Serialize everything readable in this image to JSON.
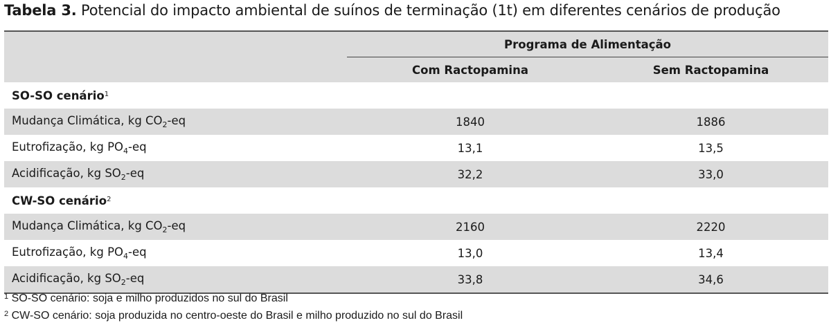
{
  "caption": {
    "label": "Tabela 3.",
    "text": " Potencial do impacto ambiental de suínos de terminação (1t) em diferentes cenários de produção"
  },
  "header": {
    "group": "Programa de Alimentação",
    "col1": "Com Ractopamina",
    "col2": "Sem Ractopamina"
  },
  "sections": [
    {
      "title": "SO-SO cenário",
      "note": "1",
      "rows": [
        {
          "pre": "Mudança Climática, kg CO",
          "sub": "2",
          "post": "-eq",
          "v1": "1840",
          "v2": "1886"
        },
        {
          "pre": "Eutrofização, kg PO",
          "sub": "4",
          "post": "-eq",
          "v1": "13,1",
          "v2": "13,5"
        },
        {
          "pre": "Acidificação, kg SO",
          "sub": "2",
          "post": "-eq",
          "v1": "32,2",
          "v2": "33,0"
        }
      ]
    },
    {
      "title": "CW-SO cenário",
      "note": "2",
      "rows": [
        {
          "pre": "Mudança Climática, kg CO",
          "sub": "2",
          "post": "-eq",
          "v1": "2160",
          "v2": "2220"
        },
        {
          "pre": "Eutrofização, kg PO",
          "sub": "4",
          "post": "-eq",
          "v1": "13,0",
          "v2": "13,4"
        },
        {
          "pre": "Acidificação, kg SO",
          "sub": "2",
          "post": "-eq",
          "v1": "33,8",
          "v2": "34,6"
        }
      ]
    }
  ],
  "footnotes": [
    {
      "mark": "1",
      "text": " SO-SO cenário: soja e milho produzidos no sul do Brasil"
    },
    {
      "mark": "2",
      "text": " CW-SO cenário: soja produzida no centro-oeste do Brasil e milho produzido no sul do Brasil"
    }
  ]
}
